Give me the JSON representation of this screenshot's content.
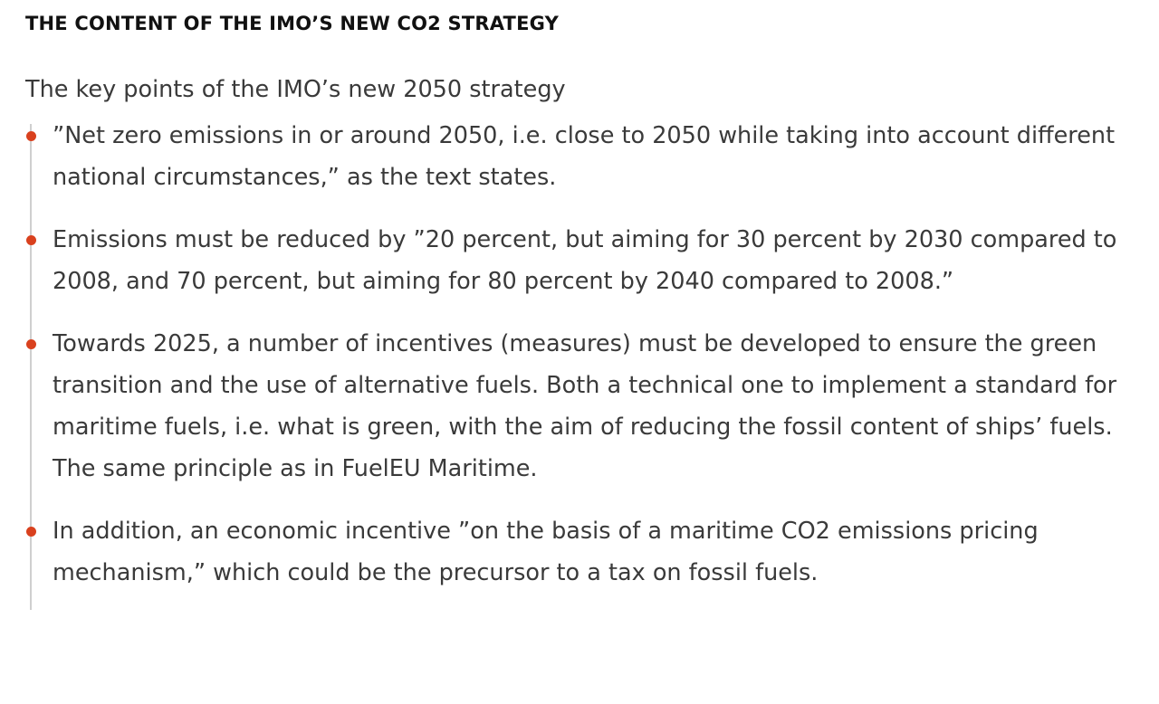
{
  "article": {
    "heading": "THE CONTENT OF THE IMO’S NEW CO2 STRATEGY",
    "intro": "The key points of the IMO’s new 2050 strategy",
    "bullet_color": "#d9411e",
    "points": [
      "”Net zero emissions in or around 2050, i.e. close to 2050 while taking into account different national circumstances,” as the text states.",
      "Emissions must be reduced by ”20 percent, but aiming for 30 percent by 2030 compared to 2008, and 70 percent, but aiming for 80 percent by 2040 compared to 2008.”",
      "Towards 2025, a number of incentives (measures) must be developed to ensure the green transition and the use of alternative fuels. Both a technical one to implement a standard for maritime fuels, i.e. what is green, with the aim of reducing the fossil content of ships’ fuels. The same principle as in FuelEU Maritime.",
      "In addition, an economic incentive ”on the basis of a maritime CO2 emissions pricing mechanism,” which could be the precursor to a tax on fossil fuels."
    ]
  }
}
